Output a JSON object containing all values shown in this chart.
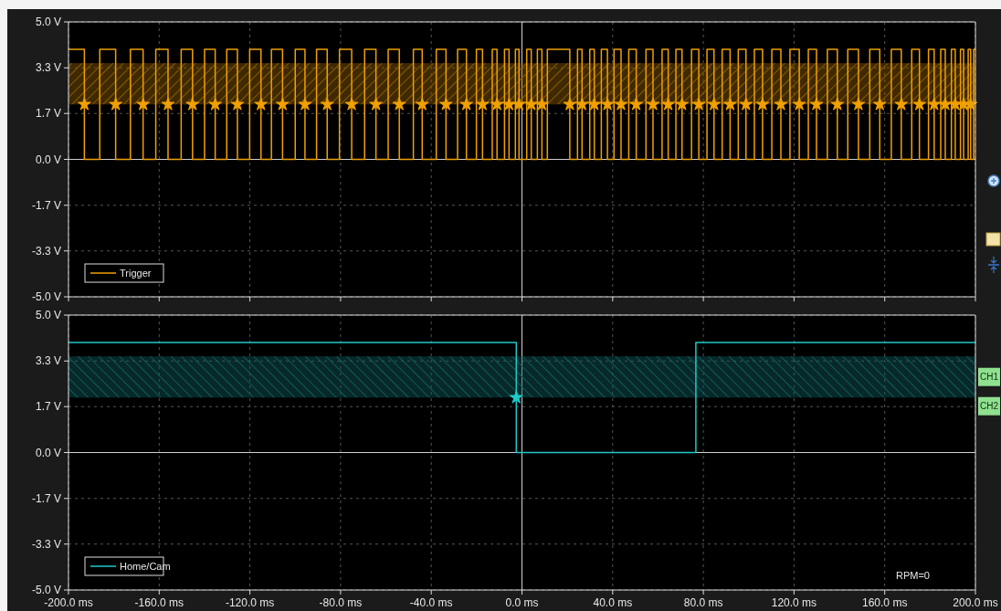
{
  "chart_data": [
    {
      "type": "step",
      "xlim": [
        -200,
        200
      ],
      "xticks": [
        {
          "value": -200,
          "label": null
        },
        {
          "value": -160,
          "label": null
        },
        {
          "value": -120,
          "label": null
        },
        {
          "value": -80,
          "label": null
        },
        {
          "value": -40,
          "label": null
        },
        {
          "value": 0,
          "label": null
        },
        {
          "value": 40,
          "label": null
        },
        {
          "value": 80,
          "label": null
        },
        {
          "value": 120,
          "label": null
        },
        {
          "value": 160,
          "label": null
        },
        {
          "value": 200,
          "label": null
        }
      ],
      "ylim": [
        -5,
        5
      ],
      "yticks": [
        {
          "value": 5,
          "label": "5.0 V"
        },
        {
          "value": 3.33,
          "label": "3.3 V"
        },
        {
          "value": 1.67,
          "label": "1.7 V"
        },
        {
          "value": 0,
          "label": "0.0 V"
        },
        {
          "value": -1.67,
          "label": "-1.7 V"
        },
        {
          "value": -3.33,
          "label": "-3.3 V"
        },
        {
          "value": -5,
          "label": "-5.0 V"
        }
      ],
      "tick_labels": "y",
      "grid": true,
      "legend": "bottom left",
      "bands": [
        {
          "axis": "y",
          "from": 2.0,
          "to": 3.5,
          "color": "#8a5a00"
        }
      ],
      "series": [
        {
          "name": "Trigger",
          "color": "#f0a000",
          "x": [
            -200,
            -193.0,
            -186.2,
            -179.2,
            -172.7,
            -167.1,
            -161.5,
            -156.1,
            -150.3,
            -145.3,
            -140.0,
            -135.3,
            -130.2,
            -125.5,
            -120.1,
            -115.1,
            -110.5,
            -105.6,
            -100.0,
            -95.7,
            -90.6,
            -85.9,
            -80.5,
            -75.1,
            -69.4,
            -64.4,
            -59.0,
            -54.1,
            -47.9,
            -44.0,
            -37.8,
            -33.5,
            -28.4,
            -24.5,
            -20.1,
            -17.4,
            -13.1,
            -11.0,
            -7.7,
            -5.7,
            -2.9,
            -1.3,
            2.1,
            4.1,
            6.8,
            8.8,
            11.2,
            21.1,
            24.5,
            26.5,
            29.9,
            31.9,
            35.0,
            37.7,
            40.6,
            43.7,
            47.1,
            50.4,
            54.7,
            57.8,
            61.8,
            64.5,
            67.9,
            70.6,
            74.8,
            78.0,
            81.6,
            84.7,
            88.3,
            91.8,
            95.4,
            98.8,
            102.5,
            106.1,
            110.2,
            114.2,
            118.2,
            122.3,
            126.3,
            129.9,
            134.7,
            139.1,
            143.7,
            148.4,
            153.4,
            157.8,
            162.9,
            167.3,
            171.9,
            175.3,
            179.3,
            181.8,
            184.7,
            186.7,
            189.4,
            191.1,
            193.4,
            194.8,
            196.8,
            197.9,
            199.2,
            200
          ],
          "values": [
            4,
            0,
            4,
            0,
            4,
            0,
            4,
            0,
            4,
            0,
            4,
            0,
            4,
            0,
            4,
            0,
            4,
            0,
            4,
            0,
            4,
            0,
            4,
            0,
            4,
            0,
            4,
            0,
            4,
            0,
            4,
            0,
            4,
            0,
            4,
            0,
            4,
            0,
            4,
            0,
            4,
            0,
            4,
            0,
            4,
            0,
            4,
            0,
            4,
            0,
            4,
            0,
            4,
            0,
            4,
            0,
            4,
            0,
            4,
            0,
            4,
            0,
            4,
            0,
            4,
            0,
            4,
            0,
            4,
            0,
            4,
            0,
            4,
            0,
            4,
            0,
            4,
            0,
            4,
            0,
            4,
            0,
            4,
            0,
            4,
            0,
            4,
            0,
            4,
            0,
            4,
            0,
            4,
            0,
            4,
            0,
            4,
            0,
            4,
            0,
            4,
            4
          ]
        },
        {
          "type": "scatter",
          "marker": "star",
          "color": "#f0a000",
          "x": [
            -193.0,
            -179.2,
            -167.1,
            -156.1,
            -145.3,
            -135.3,
            -125.5,
            -115.1,
            -105.6,
            -95.7,
            -85.9,
            -75.1,
            -64.4,
            -54.1,
            -44.0,
            -33.5,
            -24.5,
            -17.4,
            -11.0,
            -5.7,
            -1.3,
            4.1,
            8.8,
            21.1,
            26.5,
            31.9,
            37.7,
            43.7,
            50.4,
            57.8,
            64.5,
            70.6,
            78.0,
            84.7,
            91.8,
            98.8,
            106.1,
            114.2,
            122.3,
            129.9,
            139.1,
            148.4,
            157.8,
            167.3,
            175.3,
            181.8,
            186.7,
            191.1,
            194.8,
            197.9
          ],
          "values": [
            2.0,
            2.0,
            2.0,
            2.0,
            2.0,
            2.0,
            2.0,
            2.0,
            2.0,
            2.0,
            2.0,
            2.0,
            2.0,
            2.0,
            2.0,
            2.0,
            2.0,
            2.0,
            2.0,
            2.0,
            2.0,
            2.0,
            2.0,
            2.0,
            2.0,
            2.0,
            2.0,
            2.0,
            2.0,
            2.0,
            2.0,
            2.0,
            2.0,
            2.0,
            2.0,
            2.0,
            2.0,
            2.0,
            2.0,
            2.0,
            2.0,
            2.0,
            2.0,
            2.0,
            2.0,
            2.0,
            2.0,
            2.0,
            2.0,
            2.0
          ]
        }
      ]
    },
    {
      "type": "step",
      "xlim": [
        -200,
        200
      ],
      "xticks": [
        {
          "value": -200,
          "label": "-200.0 ms"
        },
        {
          "value": -160,
          "label": "-160.0 ms"
        },
        {
          "value": -120,
          "label": "-120.0 ms"
        },
        {
          "value": -80,
          "label": "-80.0 ms"
        },
        {
          "value": -40,
          "label": "-40.0 ms"
        },
        {
          "value": 0,
          "label": "0.0 ms"
        },
        {
          "value": 40,
          "label": "40.0 ms"
        },
        {
          "value": 80,
          "label": "80.0 ms"
        },
        {
          "value": 120,
          "label": "120.0 ms"
        },
        {
          "value": 160,
          "label": "160.0 ms"
        },
        {
          "value": 200,
          "label": "200.0 ms"
        }
      ],
      "ylim": [
        -5,
        5
      ],
      "yticks": [
        {
          "value": 5,
          "label": "5.0 V"
        },
        {
          "value": 3.33,
          "label": "3.3 V"
        },
        {
          "value": 1.67,
          "label": "1.7 V"
        },
        {
          "value": 0,
          "label": "0.0 V"
        },
        {
          "value": -1.67,
          "label": "-1.7 V"
        },
        {
          "value": -3.33,
          "label": "-3.3 V"
        },
        {
          "value": -5,
          "label": "-5.0 V"
        }
      ],
      "grid": true,
      "legend": "bottom left",
      "bands": [
        {
          "axis": "y",
          "from": 2.0,
          "to": 3.5,
          "color": "#0f5a5a"
        }
      ],
      "annotations": [
        "RPM=0",
        "CH1",
        "CH2"
      ],
      "series": [
        {
          "name": "Home/Cam",
          "color": "#20c8c8",
          "x": [
            -200,
            -2.5,
            76.7,
            200
          ],
          "values": [
            4,
            0,
            4,
            4
          ]
        },
        {
          "type": "scatter",
          "marker": "star",
          "color": "#20c8c8",
          "x": [
            -2.5
          ],
          "values": [
            2.0
          ]
        }
      ]
    }
  ]
}
